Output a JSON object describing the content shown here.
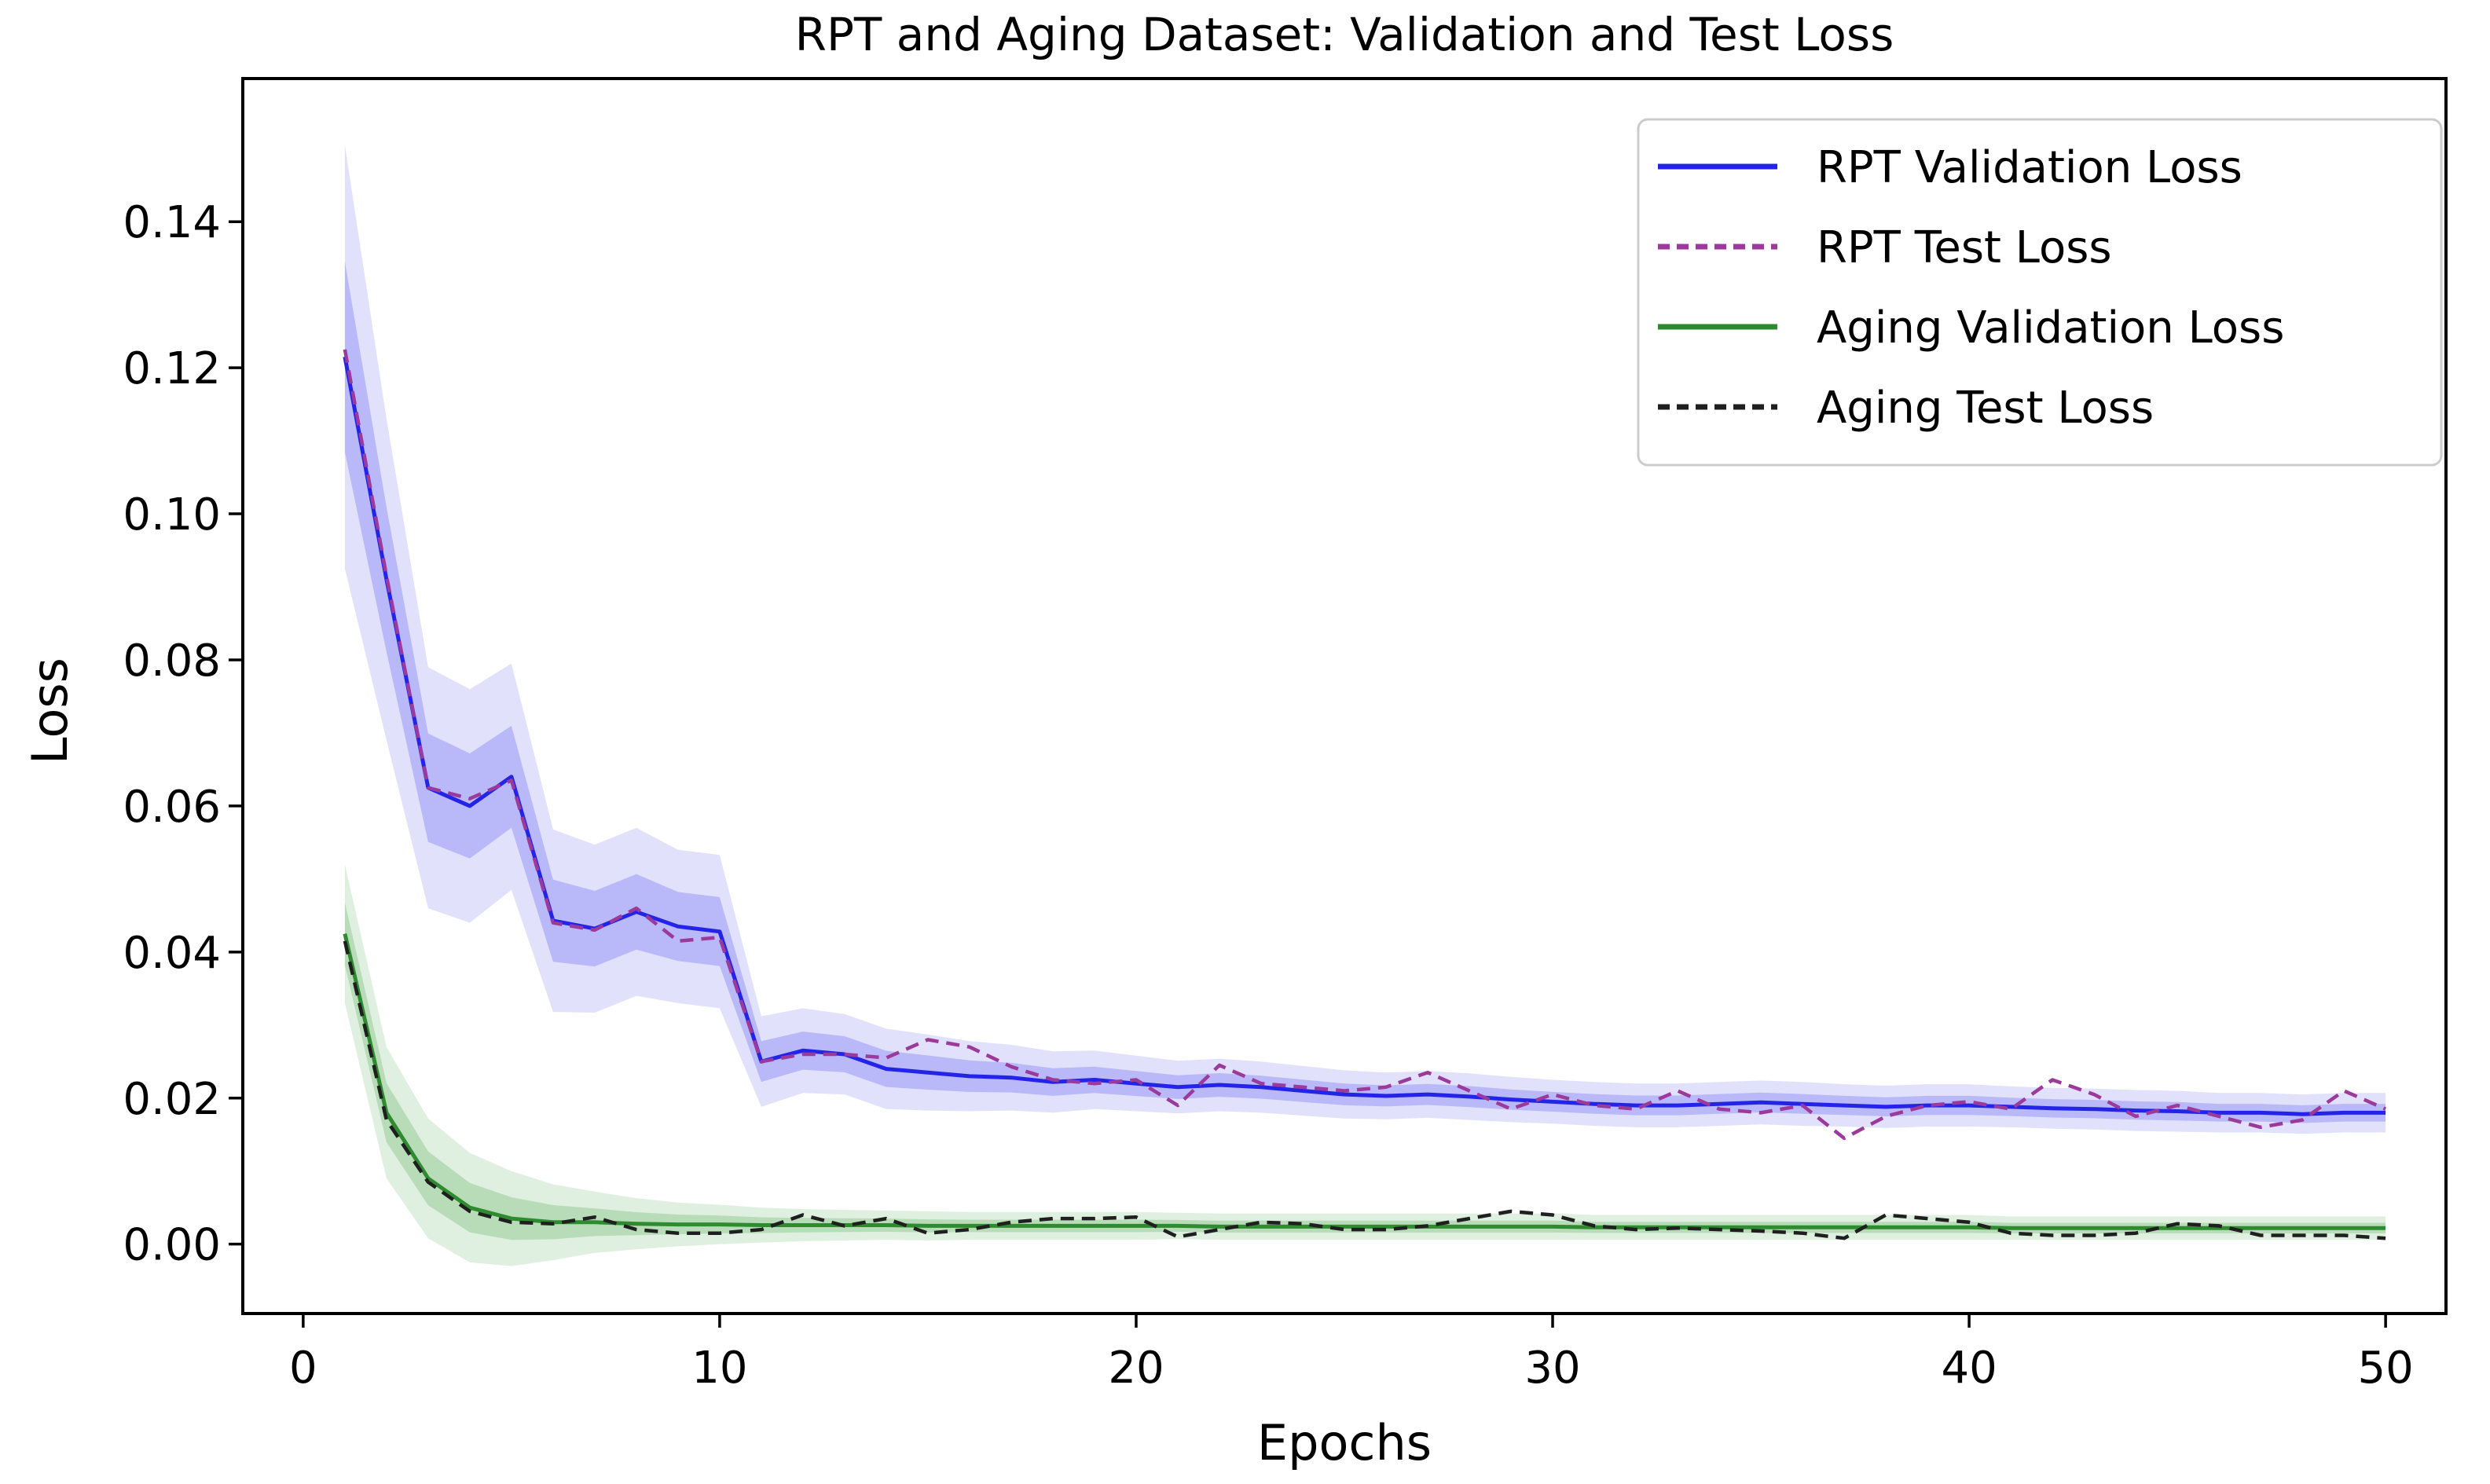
{
  "chart_data": {
    "type": "line",
    "title": "RPT and Aging Dataset: Validation and Test Loss",
    "xlabel": "Epochs",
    "ylabel": "Loss",
    "x_ticks": [
      0,
      10,
      20,
      30,
      40,
      50
    ],
    "y_ticks": [
      "0.00",
      "0.02",
      "0.04",
      "0.06",
      "0.08",
      "0.10",
      "0.12",
      "0.14"
    ],
    "y_tick_values": [
      0.0,
      0.02,
      0.04,
      0.06,
      0.08,
      0.1,
      0.12,
      0.14
    ],
    "xlim": [
      -1.45,
      51.45
    ],
    "ylim": [
      -0.0095,
      0.1596
    ],
    "grid": false,
    "legend_position": "upper right",
    "x": [
      1,
      2,
      3,
      4,
      5,
      6,
      7,
      8,
      9,
      10,
      11,
      12,
      13,
      14,
      15,
      16,
      17,
      18,
      19,
      20,
      21,
      22,
      23,
      24,
      25,
      26,
      27,
      28,
      29,
      30,
      31,
      32,
      33,
      34,
      35,
      36,
      37,
      38,
      39,
      40,
      41,
      42,
      43,
      44,
      45,
      46,
      47,
      48,
      49,
      50
    ],
    "series": [
      {
        "name": "RPT Validation Loss",
        "color": "#2424e8",
        "dash": "solid",
        "band_color": "#4444ee",
        "values": [
          0.1215,
          0.091,
          0.0625,
          0.06,
          0.064,
          0.0443,
          0.0432,
          0.0455,
          0.0435,
          0.0428,
          0.025,
          0.0265,
          0.026,
          0.024,
          0.0235,
          0.023,
          0.0228,
          0.0222,
          0.0225,
          0.022,
          0.0215,
          0.0218,
          0.0215,
          0.021,
          0.0205,
          0.0203,
          0.0205,
          0.0202,
          0.0198,
          0.0195,
          0.0192,
          0.019,
          0.019,
          0.0192,
          0.0194,
          0.0192,
          0.019,
          0.0188,
          0.019,
          0.019,
          0.0188,
          0.0186,
          0.0185,
          0.0183,
          0.0182,
          0.018,
          0.018,
          0.0178,
          0.018,
          0.018
        ],
        "band_halfwidth": [
          0.029,
          0.022,
          0.0165,
          0.016,
          0.0155,
          0.0125,
          0.0115,
          0.0115,
          0.0105,
          0.0105,
          0.0062,
          0.0058,
          0.0055,
          0.0055,
          0.0052,
          0.0048,
          0.0045,
          0.0042,
          0.004,
          0.0038,
          0.0036,
          0.0036,
          0.0035,
          0.0034,
          0.0033,
          0.0032,
          0.0032,
          0.0032,
          0.0031,
          0.003,
          0.003,
          0.003,
          0.003,
          0.003,
          0.003,
          0.003,
          0.0029,
          0.0029,
          0.0029,
          0.0029,
          0.0028,
          0.0028,
          0.0028,
          0.0028,
          0.0028,
          0.0027,
          0.0027,
          0.0027,
          0.0027,
          0.0027
        ]
      },
      {
        "name": "RPT Test Loss",
        "color": "#9c3a9c",
        "dash": "dashed",
        "values": [
          0.1225,
          0.0915,
          0.0625,
          0.061,
          0.0635,
          0.044,
          0.043,
          0.046,
          0.0415,
          0.042,
          0.025,
          0.026,
          0.026,
          0.0255,
          0.028,
          0.027,
          0.0243,
          0.0225,
          0.022,
          0.0225,
          0.019,
          0.0245,
          0.022,
          0.0215,
          0.021,
          0.0215,
          0.0235,
          0.021,
          0.0185,
          0.0205,
          0.019,
          0.0185,
          0.021,
          0.0185,
          0.018,
          0.019,
          0.0145,
          0.0175,
          0.019,
          0.0195,
          0.0185,
          0.0225,
          0.0205,
          0.0175,
          0.019,
          0.0175,
          0.016,
          0.017,
          0.021,
          0.0185
        ]
      },
      {
        "name": "Aging Validation Loss",
        "color": "#2f8b2f",
        "dash": "solid",
        "band_color": "#3f9f3f",
        "values": [
          0.0425,
          0.018,
          0.009,
          0.005,
          0.0035,
          0.003,
          0.003,
          0.0028,
          0.0027,
          0.0027,
          0.0026,
          0.0026,
          0.0026,
          0.0026,
          0.0025,
          0.0025,
          0.0025,
          0.0025,
          0.0025,
          0.0025,
          0.0025,
          0.0024,
          0.0024,
          0.0024,
          0.0024,
          0.0024,
          0.0024,
          0.0024,
          0.0024,
          0.0024,
          0.0023,
          0.0023,
          0.0023,
          0.0023,
          0.0023,
          0.0023,
          0.0023,
          0.0023,
          0.0023,
          0.0023,
          0.0022,
          0.0022,
          0.0022,
          0.0022,
          0.0022,
          0.0022,
          0.0022,
          0.0022,
          0.0022,
          0.0022
        ],
        "band_halfwidth": [
          0.0095,
          0.009,
          0.0082,
          0.0075,
          0.0065,
          0.0052,
          0.0042,
          0.0035,
          0.003,
          0.0027,
          0.0024,
          0.0022,
          0.0021,
          0.002,
          0.002,
          0.0019,
          0.0019,
          0.0019,
          0.0019,
          0.0019,
          0.0018,
          0.0018,
          0.0018,
          0.0018,
          0.0018,
          0.0018,
          0.0018,
          0.0018,
          0.0018,
          0.0018,
          0.0017,
          0.0017,
          0.0017,
          0.0017,
          0.0017,
          0.0017,
          0.0017,
          0.0017,
          0.0017,
          0.0017,
          0.0016,
          0.0016,
          0.0016,
          0.0016,
          0.0016,
          0.0016,
          0.0016,
          0.0016,
          0.0016,
          0.0016
        ]
      },
      {
        "name": "Aging Test Loss",
        "color": "#1f1f1f",
        "dash": "dashed",
        "values": [
          0.0415,
          0.017,
          0.0085,
          0.0045,
          0.003,
          0.0028,
          0.0037,
          0.002,
          0.0015,
          0.0015,
          0.002,
          0.004,
          0.0025,
          0.0035,
          0.0015,
          0.002,
          0.003,
          0.0035,
          0.0035,
          0.0037,
          0.001,
          0.002,
          0.003,
          0.0028,
          0.002,
          0.002,
          0.0025,
          0.0035,
          0.0045,
          0.004,
          0.0025,
          0.002,
          0.0022,
          0.002,
          0.0018,
          0.0015,
          0.0008,
          0.004,
          0.0035,
          0.003,
          0.0015,
          0.0012,
          0.0012,
          0.0015,
          0.0028,
          0.0025,
          0.0012,
          0.0012,
          0.0012,
          0.0008
        ]
      }
    ]
  }
}
